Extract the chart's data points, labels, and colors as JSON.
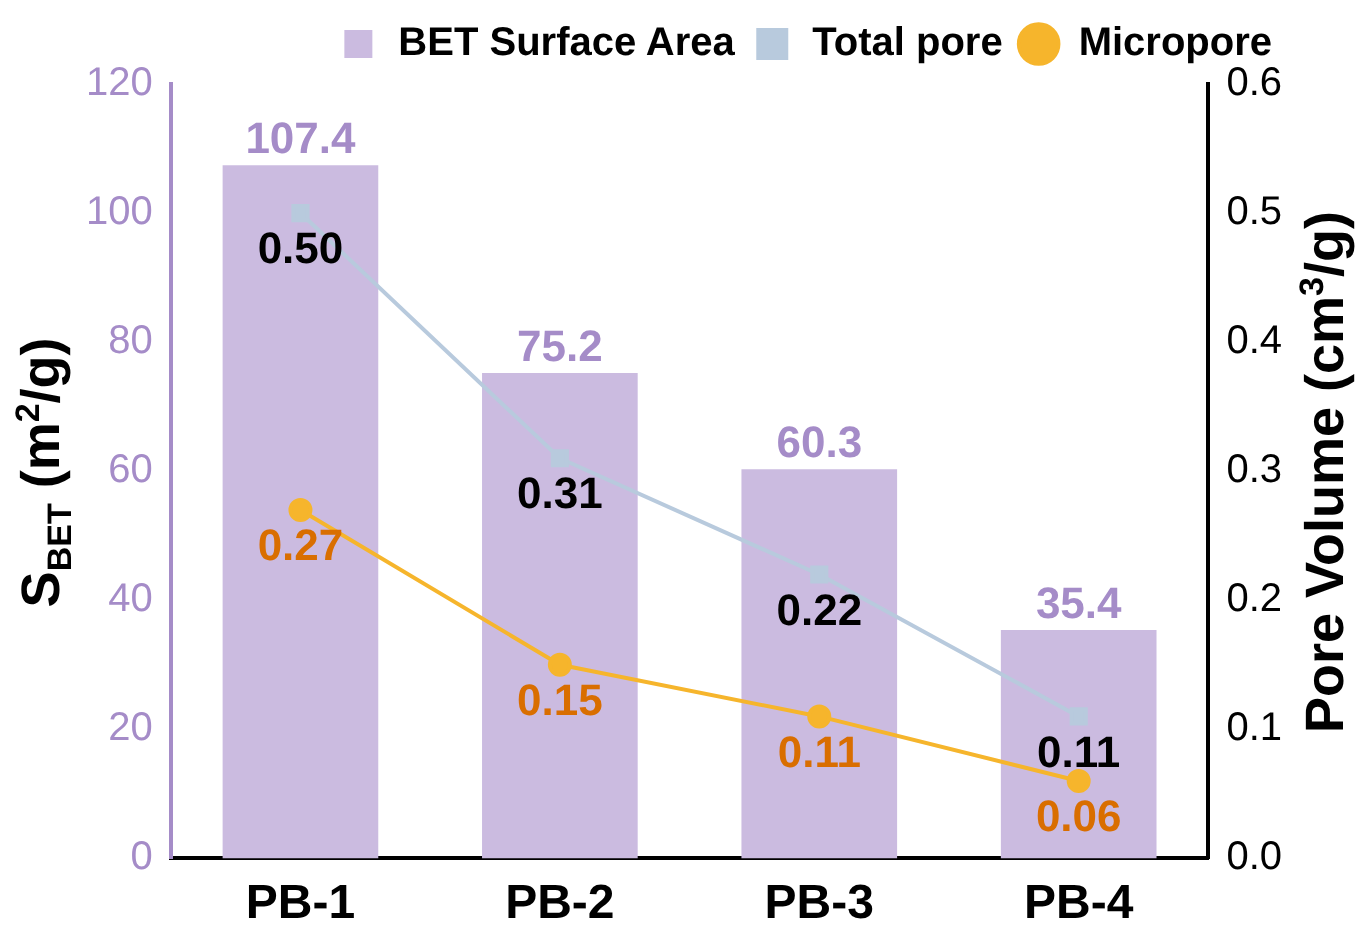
{
  "chart_data": {
    "type": "bar",
    "categories": [
      "PB-1",
      "PB-2",
      "PB-3",
      "PB-4"
    ],
    "ylabel": "S$_{BET}$ (m$^{2}$/g)",
    "y2label": "Pore Volume (cm$^{3}$/g)",
    "ylim": [
      0,
      120
    ],
    "yticks": [
      0,
      20,
      40,
      60,
      80,
      100,
      120
    ],
    "y2lim": [
      0,
      0.6
    ],
    "y2ticks": [
      {
        "value": 0,
        "label": "0.0"
      },
      0.1,
      0.2,
      0.3,
      0.4,
      0.5,
      0.6
    ],
    "series": [
      {
        "name": "BET Surface Area",
        "color": "#cbbbe0",
        "values": [
          107.4,
          75.2,
          60.3,
          35.4
        ],
        "value_labels": [
          "107.4",
          "75.2",
          "60.3",
          "35.4"
        ]
      },
      {
        "name": "Total pore",
        "type": "line",
        "axis": "y2",
        "marker": "square",
        "color": "#b8cadd",
        "values": [
          0.5,
          0.31,
          0.22,
          0.11
        ],
        "value_labels": [
          "0.50",
          "0.31",
          "0.22",
          "0.11"
        ]
      },
      {
        "name": "Micropore",
        "type": "line",
        "axis": "y2",
        "marker": "circle",
        "color": "#f6b52c",
        "values": [
          0.27,
          0.15,
          0.11,
          0.06
        ],
        "value_labels": [
          "0.27",
          "0.15",
          "0.11",
          "0.06"
        ]
      }
    ],
    "legend": "top right",
    "grid": false
  }
}
